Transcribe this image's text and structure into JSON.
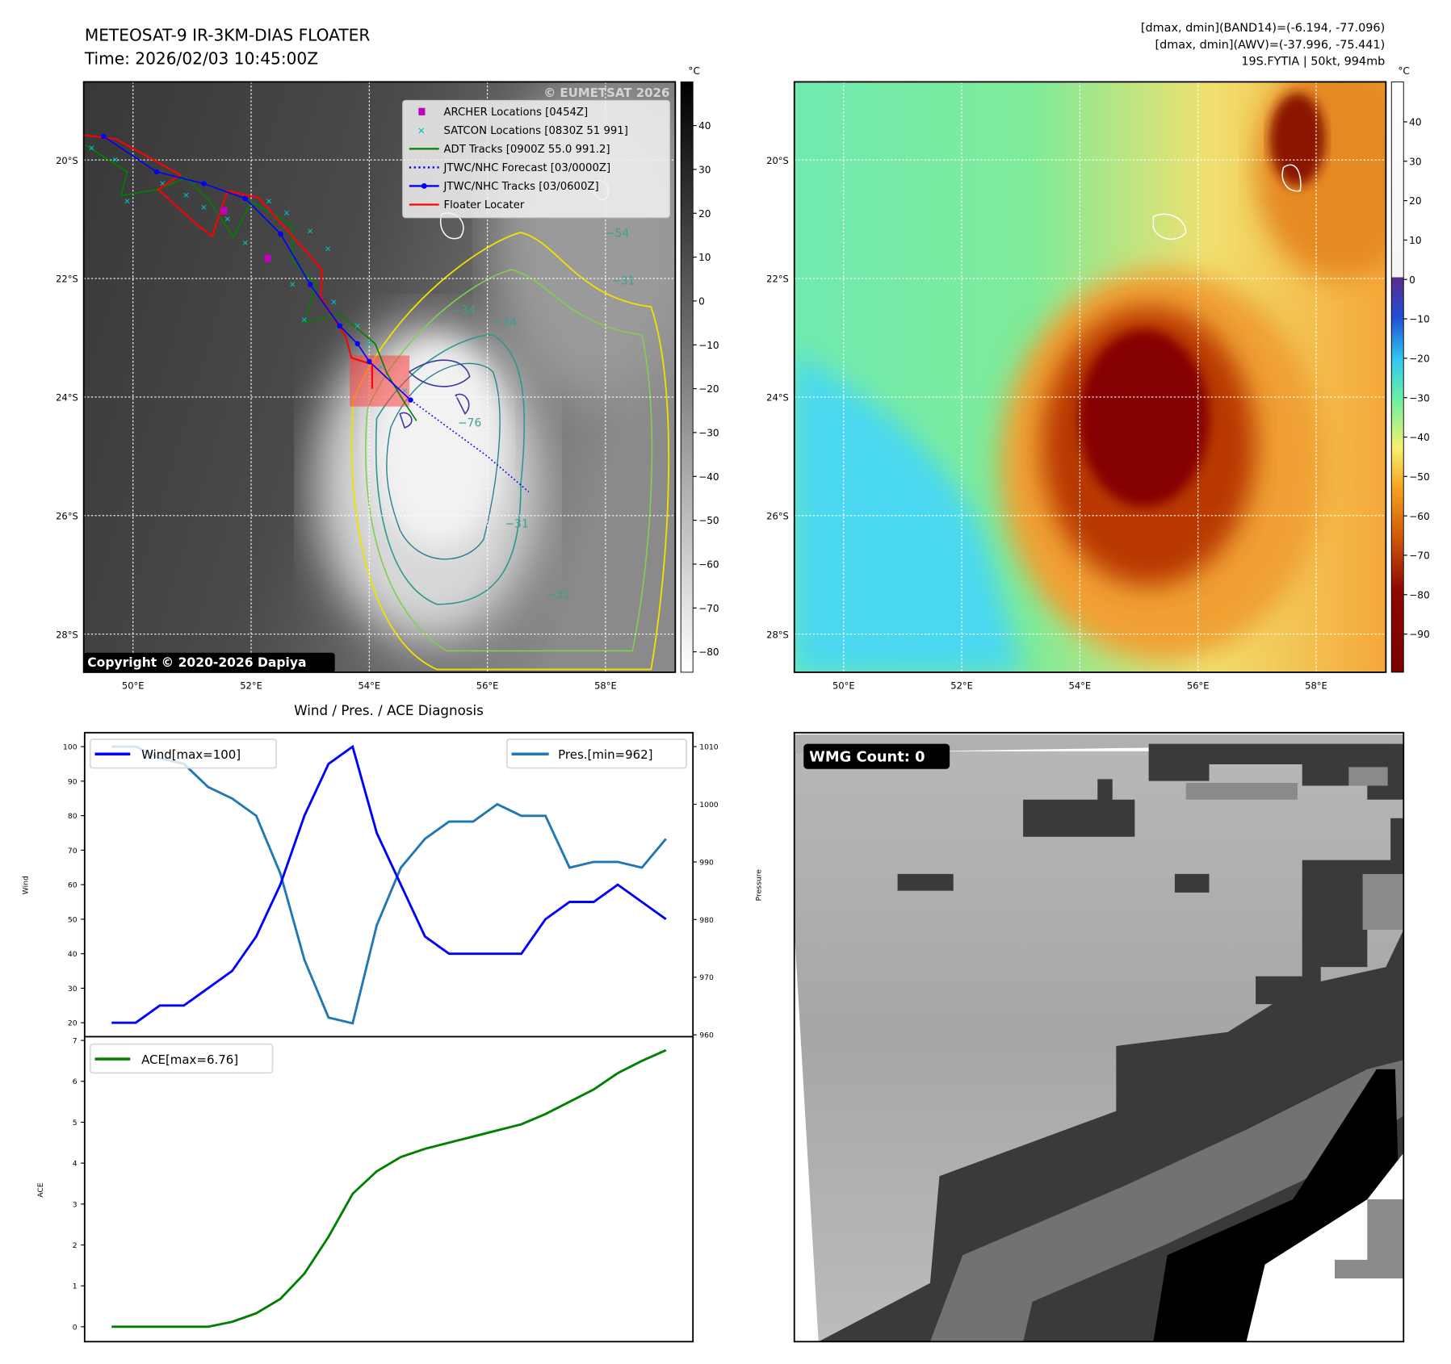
{
  "header": {
    "title_line1": "METEOSAT-9 IR-3KM-DIAS FLOATER",
    "title_line2": "Time: 2026/02/03 10:45:00Z",
    "info_line1": "[dmax, dmin](BAND14)=(-6.194, -77.096)",
    "info_line2": "[dmax, dmin](AWV)=(-37.996, -75.441)",
    "info_line3": "19S.FYTIA | 50kt, 994mb"
  },
  "ir_map": {
    "lon_ticks": [
      "50°E",
      "52°E",
      "54°E",
      "56°E",
      "58°E"
    ],
    "lon_values": [
      50,
      52,
      54,
      56,
      58
    ],
    "lat_ticks": [
      "20°S",
      "22°S",
      "24°S",
      "26°S",
      "28°S"
    ],
    "lat_values": [
      20,
      22,
      24,
      26,
      28
    ],
    "colorbar_unit": "°C",
    "colorbar_ticks": [
      40,
      30,
      20,
      10,
      0,
      -10,
      -20,
      -30,
      -40,
      -50,
      -60,
      -70,
      -80
    ],
    "colorbar_labels": [
      "40",
      "30",
      "20",
      "10",
      "0",
      "−10",
      "−20",
      "−30",
      "−40",
      "−50",
      "−60",
      "−70",
      "−80"
    ],
    "watermark": "© EUMETSAT 2026",
    "copyright": "Copyright © 2020-2026 Dapiya",
    "legend": [
      {
        "label": "ARCHER Locations [0454Z]",
        "color": "#c000c0",
        "kind": "square"
      },
      {
        "label": "SATCON Locations [0830Z 51 991]",
        "color": "#00c0c0",
        "kind": "x"
      },
      {
        "label": "ADT Tracks [0900Z 55.0 991.2]",
        "color": "#008000",
        "kind": "line"
      },
      {
        "label": "JTWC/NHC Forecast [03/0000Z]",
        "color": "#0000ff",
        "kind": "dotted"
      },
      {
        "label": "JTWC/NHC Tracks [03/0600Z]",
        "color": "#0000ff",
        "kind": "line-dot"
      },
      {
        "label": "Floater Locater",
        "color": "#ff0000",
        "kind": "line"
      }
    ],
    "contour_labels": [
      {
        "text": "−54",
        "lon": 58.2,
        "lat": 21.3
      },
      {
        "text": "−31",
        "lon": 58.3,
        "lat": 22.1
      },
      {
        "text": "−34",
        "lon": 55.6,
        "lat": 22.6
      },
      {
        "text": "−34",
        "lon": 56.3,
        "lat": 22.8
      },
      {
        "text": "−76",
        "lon": 55.7,
        "lat": 24.5
      },
      {
        "text": "−31",
        "lon": 56.5,
        "lat": 26.2
      },
      {
        "text": "−31",
        "lon": 57.2,
        "lat": 27.4
      }
    ],
    "jtwc_track": [
      [
        49.5,
        19.6
      ],
      [
        50.4,
        20.2
      ],
      [
        51.2,
        20.4
      ],
      [
        51.9,
        20.65
      ],
      [
        52.5,
        21.25
      ],
      [
        53.0,
        22.1
      ],
      [
        53.5,
        22.8
      ],
      [
        53.8,
        23.1
      ],
      [
        54.0,
        23.4
      ],
      [
        54.7,
        24.05
      ]
    ],
    "jtwc_forecast": [
      [
        54.7,
        24.05
      ],
      [
        56.0,
        25.0
      ],
      [
        56.7,
        25.6
      ]
    ],
    "floater_track": [
      [
        49.17,
        19.58
      ],
      [
        49.72,
        19.65
      ],
      [
        50.8,
        20.25
      ],
      [
        50.43,
        20.5
      ],
      [
        51.07,
        21.08
      ],
      [
        51.34,
        21.29
      ],
      [
        51.6,
        20.52
      ],
      [
        52.13,
        20.64
      ],
      [
        53.2,
        21.85
      ],
      [
        53.18,
        22.32
      ],
      [
        53.6,
        22.98
      ],
      [
        53.7,
        23.34
      ],
      [
        54.05,
        23.45
      ],
      [
        54.05,
        23.86
      ]
    ],
    "adt_track": [
      [
        49.2,
        19.75
      ],
      [
        49.9,
        20.2
      ],
      [
        49.8,
        20.6
      ],
      [
        50.4,
        20.5
      ],
      [
        50.9,
        20.3
      ],
      [
        51.3,
        20.7
      ],
      [
        51.7,
        21.3
      ],
      [
        52.0,
        20.7
      ],
      [
        52.7,
        21.1
      ],
      [
        52.7,
        21.7
      ],
      [
        53.1,
        22.1
      ],
      [
        52.9,
        22.75
      ],
      [
        53.5,
        22.6
      ],
      [
        54.1,
        23.1
      ],
      [
        54.3,
        23.6
      ],
      [
        54.6,
        24.1
      ],
      [
        54.8,
        24.4
      ]
    ],
    "satcon_points": [
      [
        49.3,
        19.8
      ],
      [
        49.7,
        20.0
      ],
      [
        49.9,
        20.7
      ],
      [
        50.5,
        20.4
      ],
      [
        50.9,
        20.6
      ],
      [
        51.2,
        20.8
      ],
      [
        51.6,
        21.0
      ],
      [
        51.9,
        21.4
      ],
      [
        52.3,
        20.7
      ],
      [
        52.6,
        20.9
      ],
      [
        53.0,
        21.2
      ],
      [
        53.3,
        21.5
      ],
      [
        52.7,
        22.1
      ],
      [
        52.9,
        22.7
      ],
      [
        53.4,
        22.4
      ],
      [
        53.8,
        22.8
      ],
      [
        54.0,
        23.1
      ],
      [
        54.2,
        23.5
      ],
      [
        54.6,
        23.9
      ]
    ],
    "archer_points": [
      [
        51.54,
        20.86
      ],
      [
        52.28,
        21.66
      ]
    ],
    "floater_box": [
      53.67,
      23.3,
      54.68,
      24.16
    ]
  },
  "awv_map": {
    "colorbar_unit": "°C",
    "colorbar_ticks": [
      40,
      30,
      20,
      10,
      0,
      -10,
      -20,
      -30,
      -40,
      -50,
      -60,
      -70,
      -80,
      -90
    ],
    "colorbar_labels": [
      "40",
      "30",
      "20",
      "10",
      "0",
      "−10",
      "−20",
      "−30",
      "−40",
      "−50",
      "−60",
      "−70",
      "−80",
      "−90"
    ]
  },
  "diagnosis": {
    "title": "Wind / Pres. / ACE Diagnosis",
    "wind_legend": "Wind[max=100]",
    "pres_legend": "Pres.[min=962]",
    "ace_legend": "ACE[max=6.76]",
    "colors": {
      "wind": "#0000ff",
      "pres": "#1f77b4",
      "ace": "#008000"
    }
  },
  "wmg": {
    "label": "WMG Count: 0"
  },
  "chart_data": [
    {
      "type": "line",
      "title": "Wind / Pres. / ACE Diagnosis",
      "xlabel": "",
      "ylabel": "Wind",
      "y2label": "Pressure",
      "ylim": [
        20,
        100
      ],
      "y2lim": [
        960,
        1010
      ],
      "yticks": [
        20,
        30,
        40,
        50,
        60,
        70,
        80,
        90,
        100
      ],
      "y2ticks": [
        960,
        970,
        980,
        990,
        1000,
        1010
      ],
      "legend": [
        "top-left",
        "top-right"
      ],
      "series": [
        {
          "name": "Wind[max=100]",
          "axis": "left",
          "values": [
            20,
            20,
            25,
            25,
            30,
            35,
            45,
            60,
            80,
            95,
            100,
            75,
            60,
            45,
            40,
            40,
            40,
            40,
            50,
            55,
            55,
            60,
            55,
            50
          ]
        },
        {
          "name": "Pres.[min=962]",
          "axis": "right",
          "values": [
            1010,
            1010,
            1008,
            1007,
            1003,
            1001,
            998,
            988,
            973,
            963,
            962,
            979,
            989,
            994,
            997,
            997,
            1000,
            998,
            998,
            989,
            990,
            990,
            989,
            994
          ]
        }
      ]
    },
    {
      "type": "line",
      "title": "",
      "ylabel": "ACE",
      "ylim": [
        0,
        7
      ],
      "yticks": [
        0,
        1,
        2,
        3,
        4,
        5,
        6,
        7
      ],
      "legend": "top-left",
      "series": [
        {
          "name": "ACE[max=6.76]",
          "values": [
            0,
            0,
            0,
            0,
            0,
            0.12,
            0.33,
            0.68,
            1.3,
            2.2,
            3.25,
            3.8,
            4.15,
            4.35,
            4.5,
            4.65,
            4.8,
            4.95,
            5.2,
            5.5,
            5.8,
            6.2,
            6.5,
            6.76
          ]
        }
      ]
    }
  ]
}
